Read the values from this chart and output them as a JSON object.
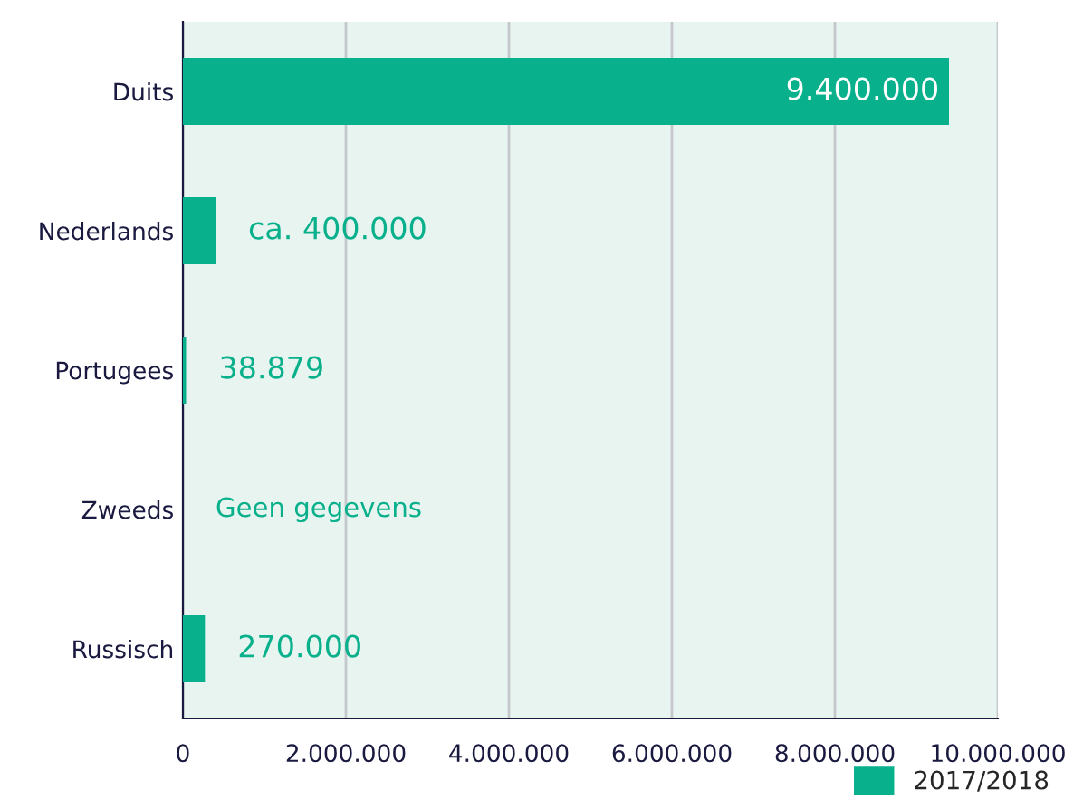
{
  "chart_data": {
    "type": "bar",
    "orientation": "horizontal",
    "categories": [
      "Duits",
      "Nederlands",
      "Portugees",
      "Zweeds",
      "Russisch"
    ],
    "series": [
      {
        "name": "2017/2018",
        "color": "#08b08c",
        "values": [
          9400000,
          400000,
          38879,
          null,
          270000
        ],
        "value_labels": [
          "9.400.000",
          "ca. 400.000",
          "38.879",
          "Geen gegevens",
          "270.000"
        ]
      }
    ],
    "xlim": [
      0,
      10000000
    ],
    "xticks": [
      {
        "value": 0,
        "label": "0"
      },
      {
        "value": 2000000,
        "label": "2.000.000"
      },
      {
        "value": 4000000,
        "label": "4.000.000"
      },
      {
        "value": 6000000,
        "label": "6.000.000"
      },
      {
        "value": 8000000,
        "label": "8.000.000"
      },
      {
        "value": 10000000,
        "label": "10.000.000"
      }
    ],
    "grid": "x",
    "legend": "bottom right"
  }
}
